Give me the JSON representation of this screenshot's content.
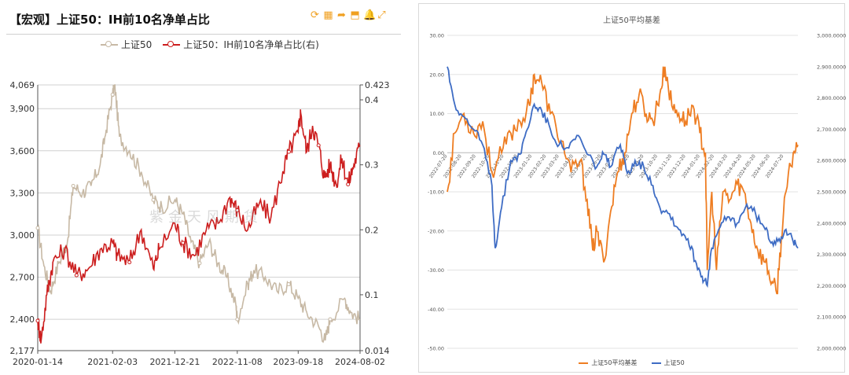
{
  "left": {
    "title": "【宏观】上证50：IH前10名净单占比",
    "toolbar": [
      {
        "name": "refresh-icon",
        "glyph": "⟳"
      },
      {
        "name": "table-icon",
        "glyph": "▦"
      },
      {
        "name": "share-icon",
        "glyph": "➦"
      },
      {
        "name": "export-icon",
        "glyph": "⬒"
      },
      {
        "name": "bell-icon",
        "glyph": "🔔"
      },
      {
        "name": "expand-icon",
        "glyph": "⤢"
      }
    ],
    "legend": [
      {
        "label": "上证50",
        "color": "#c7b9a5"
      },
      {
        "label": "上证50：IH前10名净单占比(右)",
        "color": "#cc1e1e"
      }
    ],
    "watermark": "紫金天风期货"
  },
  "right": {
    "title": "上证50平均基差",
    "legend": [
      {
        "label": "上证50平均基差",
        "color": "#ee7d22"
      },
      {
        "label": "上证50",
        "color": "#3e6cc4"
      }
    ]
  },
  "chart_data": [
    {
      "type": "line",
      "title": "【宏观】上证50：IH前10名净单占比",
      "x_ticks": [
        "2020-01-14",
        "2021-02-03",
        "2021-12-21",
        "2022-11-08",
        "2023-09-18",
        "2024-08-02"
      ],
      "x_range": [
        "2020-01-14",
        "2024-08-02"
      ],
      "y_left": {
        "range": [
          2177,
          4069
        ],
        "ticks": [
          2177,
          2400,
          2700,
          3000,
          3300,
          3600,
          3900,
          4069
        ]
      },
      "y_right": {
        "range": [
          0.014,
          0.423
        ],
        "ticks": [
          0.014,
          0.1,
          0.2,
          0.3,
          0.4,
          0.423
        ]
      },
      "grid": true,
      "legend_position": "top",
      "series": [
        {
          "name": "上证50",
          "axis": "left",
          "color": "#c7b9a5",
          "points": [
            [
              "2020-01-14",
              3050
            ],
            [
              "2020-02-15",
              2780
            ],
            [
              "2020-03-20",
              2600
            ],
            [
              "2020-05-01",
              2800
            ],
            [
              "2020-06-15",
              2950
            ],
            [
              "2020-07-15",
              3350
            ],
            [
              "2020-09-01",
              3300
            ],
            [
              "2020-10-15",
              3350
            ],
            [
              "2020-12-01",
              3500
            ],
            [
              "2021-01-01",
              3750
            ],
            [
              "2021-02-03",
              4000
            ],
            [
              "2021-02-15",
              4069
            ],
            [
              "2021-03-10",
              3700
            ],
            [
              "2021-05-01",
              3600
            ],
            [
              "2021-07-01",
              3450
            ],
            [
              "2021-09-01",
              3250
            ],
            [
              "2021-10-15",
              3200
            ],
            [
              "2021-12-21",
              3250
            ],
            [
              "2022-02-01",
              3150
            ],
            [
              "2022-03-15",
              2950
            ],
            [
              "2022-04-28",
              2800
            ],
            [
              "2022-06-15",
              2950
            ],
            [
              "2022-08-01",
              2800
            ],
            [
              "2022-09-15",
              2700
            ],
            [
              "2022-11-01",
              2500
            ],
            [
              "2022-11-08",
              2400
            ],
            [
              "2023-01-01",
              2650
            ],
            [
              "2023-02-01",
              2750
            ],
            [
              "2023-04-01",
              2700
            ],
            [
              "2023-06-01",
              2600
            ],
            [
              "2023-07-31",
              2650
            ],
            [
              "2023-09-18",
              2550
            ],
            [
              "2023-11-01",
              2450
            ],
            [
              "2024-01-01",
              2350
            ],
            [
              "2024-02-05",
              2250
            ],
            [
              "2024-03-01",
              2400
            ],
            [
              "2024-05-15",
              2550
            ],
            [
              "2024-06-15",
              2450
            ],
            [
              "2024-08-02",
              2400
            ]
          ]
        },
        {
          "name": "上证50：IH前10名净单占比(右)",
          "axis": "right",
          "color": "#cc1e1e",
          "points": [
            [
              "2020-01-14",
              0.06
            ],
            [
              "2020-02-01",
              0.03
            ],
            [
              "2020-03-01",
              0.1
            ],
            [
              "2020-04-01",
              0.15
            ],
            [
              "2020-06-01",
              0.17
            ],
            [
              "2020-08-01",
              0.13
            ],
            [
              "2020-10-01",
              0.14
            ],
            [
              "2020-12-01",
              0.17
            ],
            [
              "2021-02-03",
              0.18
            ],
            [
              "2021-03-01",
              0.16
            ],
            [
              "2021-05-01",
              0.15
            ],
            [
              "2021-07-01",
              0.2
            ],
            [
              "2021-09-01",
              0.14
            ],
            [
              "2021-10-01",
              0.17
            ],
            [
              "2021-12-21",
              0.21
            ],
            [
              "2022-02-01",
              0.18
            ],
            [
              "2022-04-01",
              0.16
            ],
            [
              "2022-06-01",
              0.2
            ],
            [
              "2022-08-01",
              0.21
            ],
            [
              "2022-10-01",
              0.25
            ],
            [
              "2022-11-08",
              0.23
            ],
            [
              "2023-01-01",
              0.2
            ],
            [
              "2023-03-01",
              0.24
            ],
            [
              "2023-05-01",
              0.22
            ],
            [
              "2023-07-01",
              0.29
            ],
            [
              "2023-08-01",
              0.32
            ],
            [
              "2023-09-18",
              0.35
            ],
            [
              "2023-10-01",
              0.38
            ],
            [
              "2023-11-01",
              0.32
            ],
            [
              "2023-12-01",
              0.36
            ],
            [
              "2024-01-01",
              0.33
            ],
            [
              "2024-02-01",
              0.28
            ],
            [
              "2024-03-01",
              0.3
            ],
            [
              "2024-04-01",
              0.27
            ],
            [
              "2024-05-01",
              0.31
            ],
            [
              "2024-06-01",
              0.27
            ],
            [
              "2024-07-01",
              0.3
            ],
            [
              "2024-08-02",
              0.33
            ]
          ]
        }
      ]
    },
    {
      "type": "line",
      "title": "上证50平均基差",
      "x_ticks": [
        "2022-07-20",
        "2022-08-20",
        "2022-09-20",
        "2022-10-20",
        "2022-11-20",
        "2022-12-20",
        "2023-01-20",
        "2023-02-20",
        "2023-03-20",
        "2023-04-20",
        "2023-05-20",
        "2023-06-20",
        "2023-07-20",
        "2023-08-20",
        "2023-09-20",
        "2023-10-20",
        "2023-11-20",
        "2023-12-20",
        "2024-01-20",
        "2024-02-20",
        "2024-03-20",
        "2024-04-20",
        "2024-05-20",
        "2024-06-20",
        "2024-07-20"
      ],
      "x_range": [
        "2022-07-20",
        "2024-08-20"
      ],
      "y_left": {
        "range": [
          -50,
          30
        ],
        "ticks": [
          -50,
          -40,
          -30,
          -20,
          -10,
          0,
          10,
          20,
          30
        ]
      },
      "y_right": {
        "range": [
          2000,
          3000
        ],
        "ticks": [
          2000,
          2100,
          2200,
          2300,
          2400,
          2500,
          2600,
          2700,
          2800,
          2900,
          3000
        ]
      },
      "y_left_tick_labels": [
        "-50.00",
        "-40.00",
        "-30.00",
        "-20.00",
        "-10.00",
        "0.00",
        "10.00",
        "20.00",
        "30.00"
      ],
      "y_right_tick_labels": [
        "2,000.0000",
        "2,100.0000",
        "2,200.0000",
        "2,300.0000",
        "2,400.0000",
        "2,500.0000",
        "2,600.0000",
        "2,700.0000",
        "2,800.0000",
        "2,900.0000",
        "3,000.0000"
      ],
      "grid": true,
      "legend_position": "bottom",
      "series": [
        {
          "name": "上证50平均基差",
          "axis": "left",
          "color": "#ee7d22",
          "points": [
            [
              "2022-07-20",
              -10
            ],
            [
              "2022-08-05",
              5
            ],
            [
              "2022-08-25",
              10
            ],
            [
              "2022-09-15",
              5
            ],
            [
              "2022-10-05",
              8
            ],
            [
              "2022-10-25",
              -5
            ],
            [
              "2022-11-15",
              0
            ],
            [
              "2022-12-05",
              5
            ],
            [
              "2022-12-25",
              8
            ],
            [
              "2023-01-15",
              12
            ],
            [
              "2023-01-25",
              20
            ],
            [
              "2023-02-10",
              18
            ],
            [
              "2023-03-01",
              10
            ],
            [
              "2023-03-25",
              3
            ],
            [
              "2023-04-15",
              -5
            ],
            [
              "2023-05-05",
              -2
            ],
            [
              "2023-05-20",
              -12
            ],
            [
              "2023-06-01",
              -25
            ],
            [
              "2023-06-10",
              -20
            ],
            [
              "2023-06-25",
              -28
            ],
            [
              "2023-07-10",
              -15
            ],
            [
              "2023-07-25",
              -5
            ],
            [
              "2023-08-10",
              0
            ],
            [
              "2023-08-25",
              10
            ],
            [
              "2023-09-10",
              15
            ],
            [
              "2023-09-25",
              10
            ],
            [
              "2023-10-10",
              8
            ],
            [
              "2023-10-25",
              15
            ],
            [
              "2023-11-05",
              22
            ],
            [
              "2023-11-20",
              12
            ],
            [
              "2023-12-05",
              10
            ],
            [
              "2023-12-20",
              8
            ],
            [
              "2024-01-05",
              12
            ],
            [
              "2024-01-20",
              5
            ],
            [
              "2024-02-01",
              0
            ],
            [
              "2024-02-05",
              -30
            ],
            [
              "2024-02-15",
              -10
            ],
            [
              "2024-02-25",
              -30
            ],
            [
              "2024-03-10",
              -10
            ],
            [
              "2024-03-25",
              -12
            ],
            [
              "2024-04-10",
              -8
            ],
            [
              "2024-04-25",
              -10
            ],
            [
              "2024-05-10",
              -18
            ],
            [
              "2024-05-25",
              -25
            ],
            [
              "2024-06-10",
              -28
            ],
            [
              "2024-06-25",
              -33
            ],
            [
              "2024-07-05",
              -36
            ],
            [
              "2024-07-15",
              -22
            ],
            [
              "2024-07-25",
              -10
            ],
            [
              "2024-08-10",
              0
            ],
            [
              "2024-08-20",
              2
            ]
          ]
        },
        {
          "name": "上证50",
          "axis": "right",
          "color": "#3e6cc4",
          "points": [
            [
              "2022-07-20",
              2900
            ],
            [
              "2022-08-05",
              2780
            ],
            [
              "2022-08-25",
              2740
            ],
            [
              "2022-09-15",
              2700
            ],
            [
              "2022-10-05",
              2650
            ],
            [
              "2022-10-25",
              2520
            ],
            [
              "2022-11-01",
              2320
            ],
            [
              "2022-11-15",
              2450
            ],
            [
              "2022-12-05",
              2600
            ],
            [
              "2022-12-25",
              2620
            ],
            [
              "2023-01-10",
              2700
            ],
            [
              "2023-01-25",
              2780
            ],
            [
              "2023-02-10",
              2760
            ],
            [
              "2023-03-01",
              2700
            ],
            [
              "2023-03-20",
              2650
            ],
            [
              "2023-04-10",
              2640
            ],
            [
              "2023-05-01",
              2680
            ],
            [
              "2023-05-20",
              2620
            ],
            [
              "2023-06-10",
              2580
            ],
            [
              "2023-06-25",
              2620
            ],
            [
              "2023-07-10",
              2580
            ],
            [
              "2023-07-31",
              2650
            ],
            [
              "2023-08-15",
              2560
            ],
            [
              "2023-09-01",
              2600
            ],
            [
              "2023-09-20",
              2580
            ],
            [
              "2023-10-10",
              2520
            ],
            [
              "2023-10-25",
              2450
            ],
            [
              "2023-11-15",
              2430
            ],
            [
              "2023-12-05",
              2380
            ],
            [
              "2023-12-25",
              2350
            ],
            [
              "2024-01-10",
              2280
            ],
            [
              "2024-01-25",
              2230
            ],
            [
              "2024-02-05",
              2200
            ],
            [
              "2024-02-15",
              2320
            ],
            [
              "2024-03-01",
              2380
            ],
            [
              "2024-03-20",
              2420
            ],
            [
              "2024-04-10",
              2400
            ],
            [
              "2024-05-01",
              2460
            ],
            [
              "2024-05-20",
              2430
            ],
            [
              "2024-06-10",
              2380
            ],
            [
              "2024-06-25",
              2340
            ],
            [
              "2024-07-10",
              2350
            ],
            [
              "2024-07-25",
              2380
            ],
            [
              "2024-08-10",
              2340
            ],
            [
              "2024-08-20",
              2320
            ]
          ]
        }
      ]
    }
  ]
}
